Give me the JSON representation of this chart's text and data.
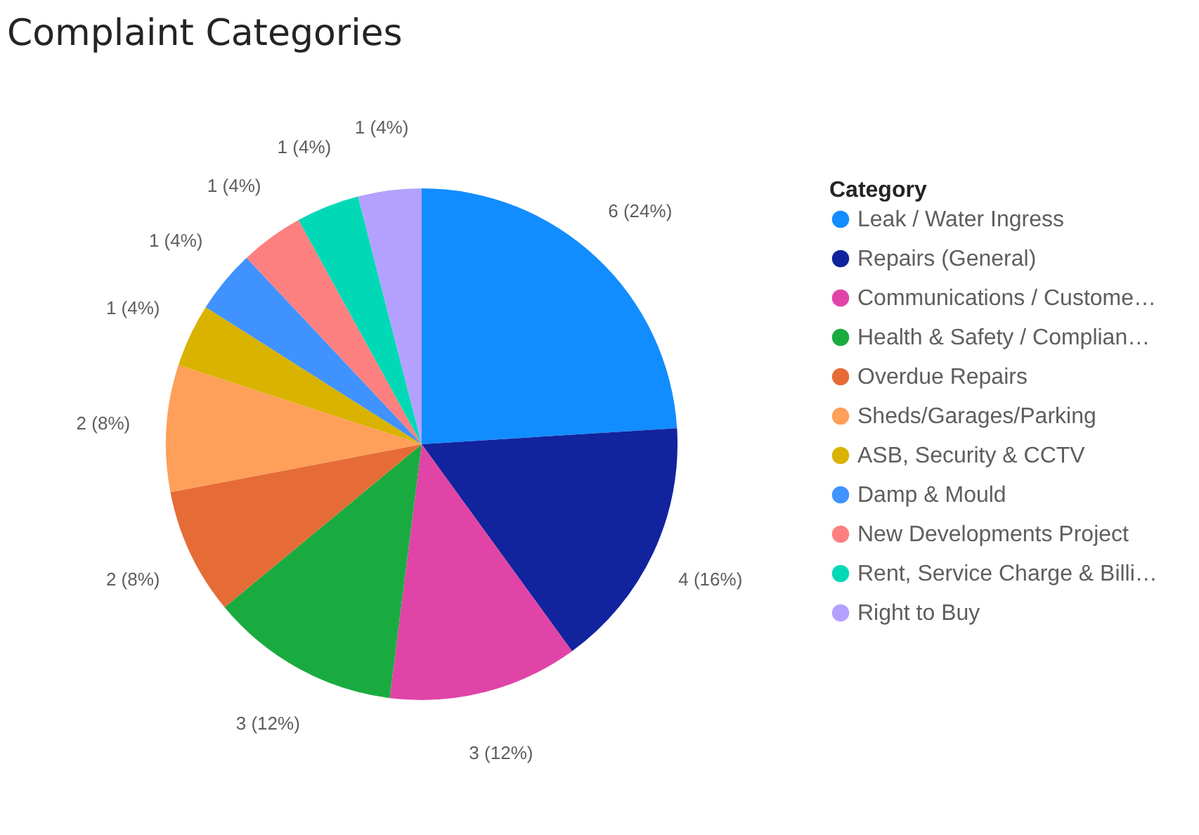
{
  "chart_data": {
    "type": "pie",
    "title": "Complaint Categories",
    "legend_title": "Category",
    "legend": "right",
    "categories": [
      "Leak / Water Ingress",
      "Repairs (General)",
      "Communications / Custome…",
      "Health & Safety / Complian…",
      "Overdue Repairs",
      "Sheds/Garages/Parking",
      "ASB, Security & CCTV",
      "Damp & Mould",
      "New Developments Project",
      "Rent, Service Charge & Billi…",
      "Right to Buy"
    ],
    "values": [
      6,
      4,
      3,
      3,
      2,
      2,
      1,
      1,
      1,
      1,
      1
    ],
    "value_labels": [
      "6 (24%)",
      "4 (16%)",
      "3 (12%)",
      "3 (12%)",
      "2 (8%)",
      "2 (8%)",
      "1 (4%)",
      "1 (4%)",
      "1 (4%)",
      "1 (4%)",
      "1 (4%)"
    ],
    "colors": [
      "#118dff",
      "#12239e",
      "#e044a7",
      "#1aab40",
      "#e66c37",
      "#fe9f5a",
      "#d9b300",
      "#4092ff",
      "#fd8080",
      "#01d9b6",
      "#b4a0fe"
    ]
  }
}
